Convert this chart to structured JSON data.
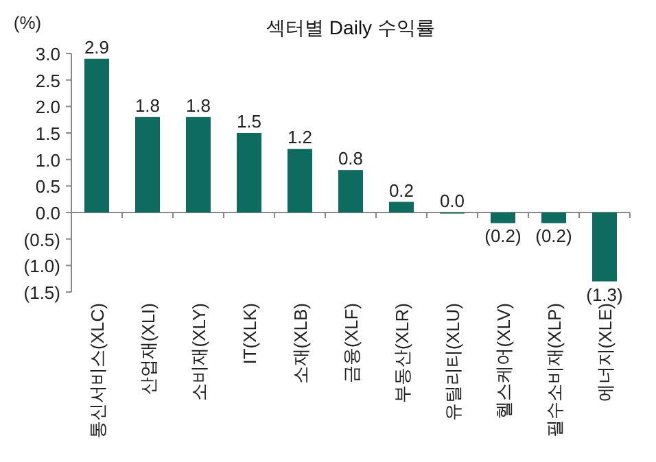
{
  "chart_data": {
    "type": "bar",
    "title": "섹터별 Daily 수익률",
    "ylabel": "(%)",
    "categories": [
      "통신서비스(XLC)",
      "산업재(XLI)",
      "소비재(XLY)",
      "IT(XLK)",
      "소재(XLB)",
      "금융(XLF)",
      "부동산(XLR)",
      "유틸리티(XLU)",
      "헬스케어(XLV)",
      "필수소비재(XLP)",
      "에너지(XLE)"
    ],
    "values": [
      2.9,
      1.8,
      1.8,
      1.5,
      1.2,
      0.8,
      0.2,
      0.0,
      -0.2,
      -0.2,
      -1.3
    ],
    "value_labels": [
      "2.9",
      "1.8",
      "1.8",
      "1.5",
      "1.2",
      "0.8",
      "0.2",
      "0.0",
      "(0.2)",
      "(0.2)",
      "(1.3)"
    ],
    "color": "#0e6b5f",
    "ylim": [
      -1.5,
      3.0
    ],
    "yticks": [
      {
        "value": -1.5,
        "label": "(1.5)"
      },
      {
        "value": -1.0,
        "label": "(1.0)"
      },
      {
        "value": -0.5,
        "label": "(0.5)"
      },
      {
        "value": 0,
        "label": "0.0"
      },
      {
        "value": 0.5,
        "label": "0.5"
      },
      {
        "value": 1.0,
        "label": "1.0"
      },
      {
        "value": 1.5,
        "label": "1.5"
      },
      {
        "value": 2.0,
        "label": "2.0"
      },
      {
        "value": 2.5,
        "label": "2.5"
      },
      {
        "value": 3.0,
        "label": "3.0"
      }
    ]
  }
}
